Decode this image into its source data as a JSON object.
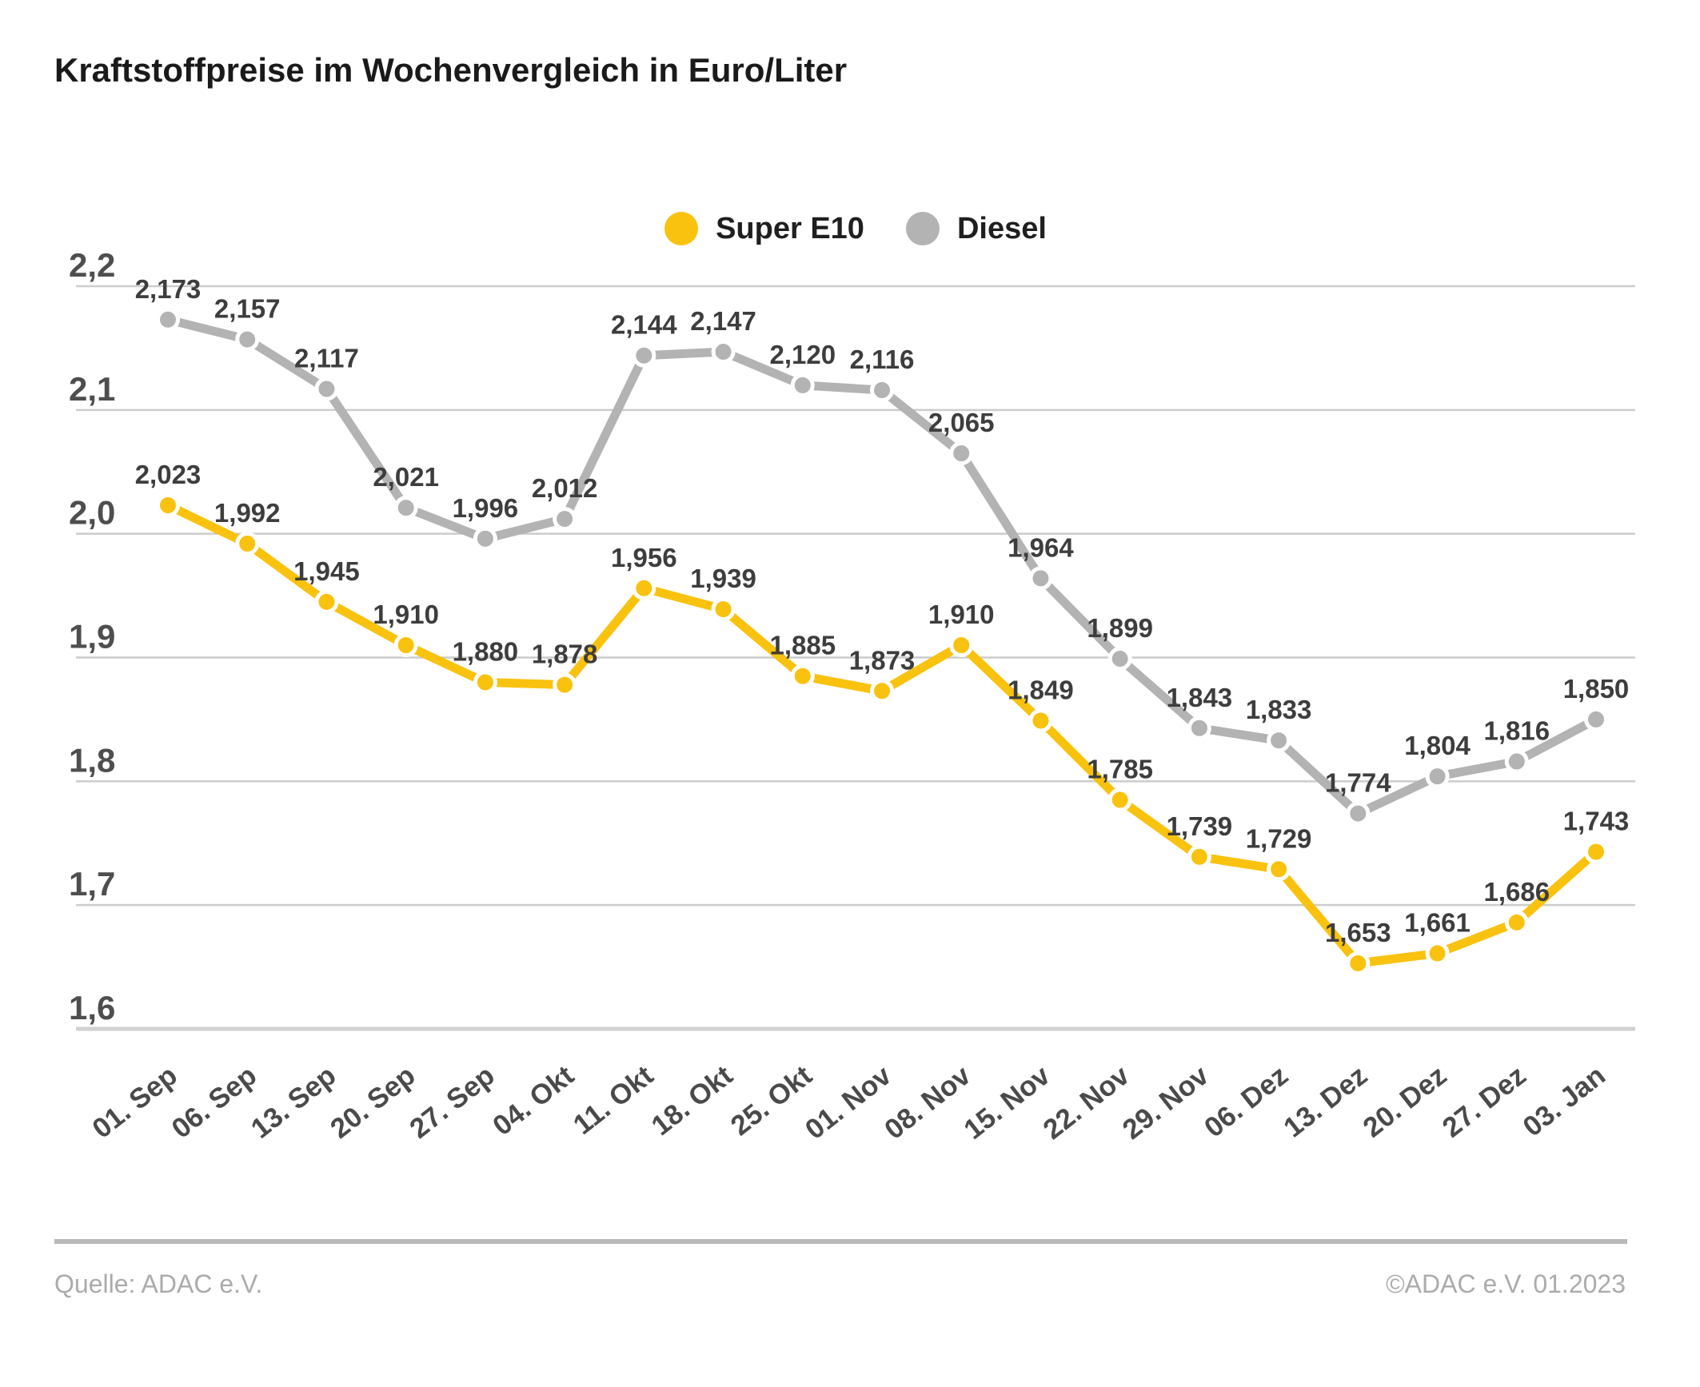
{
  "title": "Kraftstoffpreise im Wochenvergleich in Euro/Liter",
  "footer": {
    "source": "Quelle: ADAC e.V.",
    "copyright": "©ADAC e.V.  01.2023"
  },
  "chart_data": {
    "type": "line",
    "title": "Kraftstoffpreise im Wochenvergleich in Euro/Liter",
    "categories": [
      "01. Sep",
      "06. Sep",
      "13. Sep",
      "20. Sep",
      "27. Sep",
      "04. Okt",
      "11. Okt",
      "18. Okt",
      "25. Okt",
      "01. Nov",
      "08. Nov",
      "15. Nov",
      "22. Nov",
      "29. Nov",
      "06. Dez",
      "13. Dez",
      "20. Dez",
      "27. Dez",
      "03. Jan"
    ],
    "series": [
      {
        "name": "Super E10",
        "color": "#F9C20E",
        "values": [
          2.023,
          1.992,
          1.945,
          1.91,
          1.88,
          1.878,
          1.956,
          1.939,
          1.885,
          1.873,
          1.91,
          1.849,
          1.785,
          1.739,
          1.729,
          1.653,
          1.661,
          1.686,
          1.743
        ]
      },
      {
        "name": "Diesel",
        "color": "#B3B3B3",
        "values": [
          2.173,
          2.157,
          2.117,
          2.021,
          1.996,
          2.012,
          2.144,
          2.147,
          2.12,
          2.116,
          2.065,
          1.964,
          1.899,
          1.843,
          1.833,
          1.774,
          1.804,
          1.816,
          1.85
        ]
      }
    ],
    "xlabel": "",
    "ylabel": "",
    "ylim": [
      1.6,
      2.2
    ],
    "yticks": [
      2.2,
      2.1,
      2.0,
      1.9,
      1.8,
      1.7,
      1.6
    ],
    "decimal_separator": ",",
    "value_label_decimals": 3,
    "tick_label_decimals": 1,
    "grid": true,
    "value_labels": true,
    "legend_position": "top-center",
    "colors": {
      "grid": "#CCCCCC",
      "axis_line": "#D2D2D2",
      "y_tick_label": "#4E4E4E",
      "x_tick_label": "#4A4A4A",
      "value_label": "#3D3D3D"
    }
  }
}
